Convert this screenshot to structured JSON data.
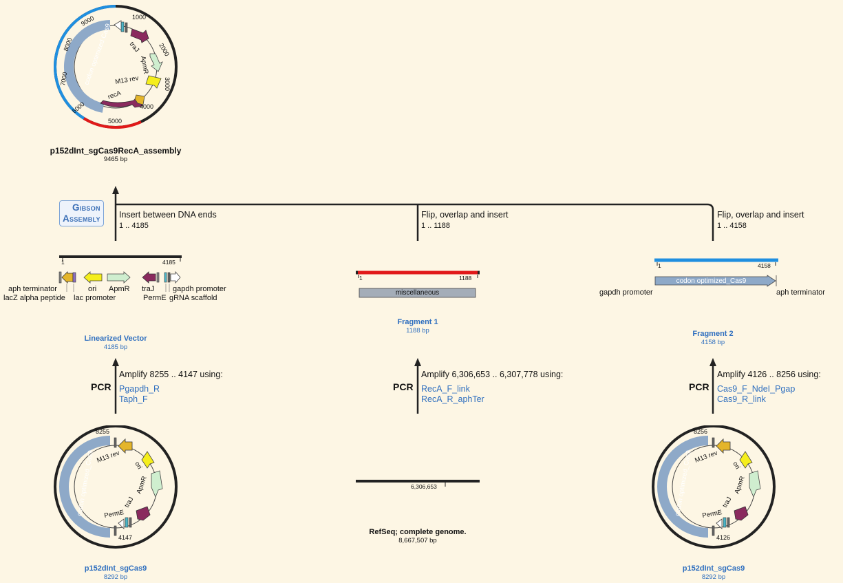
{
  "assembly": {
    "name": "p152dInt_sgCas9RecA_assembly",
    "size": "9465 bp",
    "ticks": [
      "1000",
      "2000",
      "3000",
      "4000",
      "5000",
      "6000",
      "7000",
      "8000",
      "9000"
    ],
    "features": [
      "codon optimized Cas9",
      "traJ",
      "ApmR",
      "M13 rev",
      "recA"
    ]
  },
  "method_badge": [
    "Gibson",
    "Assembly"
  ],
  "steps": {
    "insert": {
      "title": "Insert between DNA ends",
      "range": "1 .. 4185"
    },
    "flip1": {
      "title": "Flip, overlap and insert",
      "range": "1 .. 1188"
    },
    "flip2": {
      "title": "Flip, overlap and insert",
      "range": "1 .. 4158"
    }
  },
  "linearized": {
    "start": "1",
    "end": "4185",
    "labels": {
      "aph_terminator": "aph terminator",
      "lacz": "lacZ alpha peptide",
      "ori": "ori",
      "lac_promoter": "lac promoter",
      "apmr": "ApmR",
      "traj": "traJ",
      "perme": "PermE",
      "gapdh": "gapdh promoter",
      "grna": "gRNA scaffold"
    },
    "name": "Linearized Vector",
    "size": "4185 bp"
  },
  "fragment1": {
    "start": "1",
    "end": "1188",
    "feature": "miscellaneous",
    "name": "Fragment 1",
    "size": "1188 bp"
  },
  "fragment2": {
    "start": "1",
    "end": "4158",
    "feature": "codon optimized_Cas9",
    "left_label": "gapdh promoter",
    "right_label": "aph terminator",
    "name": "Fragment 2",
    "size": "4158 bp"
  },
  "pcr": {
    "label": "PCR",
    "left": {
      "title": "Amplify 8255 .. 4147 using:",
      "primers": [
        "Pgapdh_R",
        "Taph_F"
      ]
    },
    "mid": {
      "title": "Amplify 6,306,653 .. 6,307,778 using:",
      "primers": [
        "RecA_F_link",
        "RecA_R_aphTer"
      ]
    },
    "right": {
      "title": "Amplify 4126 .. 8256 using:",
      "primers": [
        "Cas9_F_NdeI_Pgap",
        "Cas9_R_link"
      ]
    }
  },
  "template_left": {
    "name": "p152dInt_sgCas9",
    "size": "8292 bp",
    "mark_top": "8255",
    "mark_bottom": "4147",
    "features": [
      "codon optimized_Cas9",
      "M13 rev",
      "ori",
      "ApmR",
      "traJ",
      "PermE"
    ]
  },
  "template_mid": {
    "mark": "6,306,653",
    "name": "RefSeq; complete genome.",
    "size": "8,667,507 bp"
  },
  "template_right": {
    "name": "p152dInt_sgCas9",
    "size": "8292 bp",
    "mark_top": "8256",
    "mark_bottom": "4126",
    "features": [
      "codon optimized_Cas9",
      "M13 rev",
      "ori",
      "ApmR",
      "traJ",
      "PermE"
    ]
  },
  "colors": {
    "background": "#fdf6e4",
    "backbone": "#222222",
    "cas9_blue": "#1f8fe0",
    "fragment_red": "#e11919",
    "feature_grey_blue": "#8ea9c8",
    "recA_purple": "#8a2a5e",
    "ori_yellow": "#f5ee1c",
    "apmr_green": "#cfeecf",
    "gold": "#e4b52a",
    "link_blue": "#2f6fbf"
  }
}
